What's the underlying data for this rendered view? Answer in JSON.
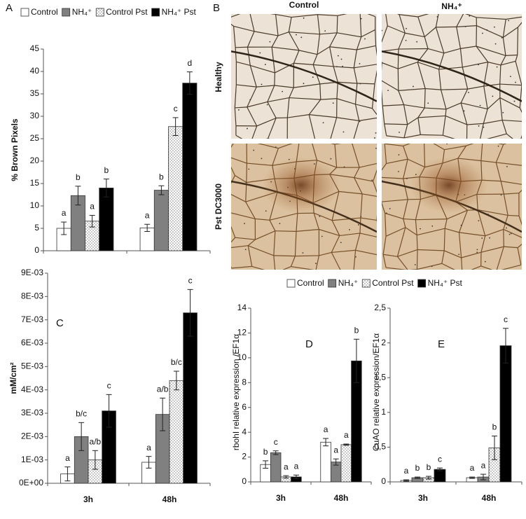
{
  "chart_data": [
    {
      "type": "bar",
      "panel": "A",
      "ylabel": "% Brown Pixels",
      "categories": [
        null,
        null
      ],
      "ylim": [
        0,
        45
      ],
      "yticks": [
        0,
        5,
        10,
        15,
        20,
        25,
        30,
        35,
        40,
        45
      ],
      "series": [
        {
          "name": "Control",
          "color": "#ffffff",
          "values": [
            5,
            5.1
          ],
          "errors": [
            1.4,
            0.8
          ],
          "letters": [
            "a",
            "a"
          ]
        },
        {
          "name": "NH₄⁺",
          "color": "#808080",
          "values": [
            12.3,
            13.5
          ],
          "errors": [
            2.1,
            1.0
          ],
          "letters": [
            "b",
            "b"
          ]
        },
        {
          "name": "Control Pst",
          "color": "#ffffff",
          "pattern": "dots",
          "values": [
            6.6,
            27.7
          ],
          "errors": [
            1.3,
            2.0
          ],
          "letters": [
            "a",
            "c"
          ]
        },
        {
          "name": "NH₄⁺ Pst",
          "color": "#000000",
          "values": [
            14,
            37.4
          ],
          "errors": [
            2.0,
            2.5
          ],
          "letters": [
            "b",
            "d"
          ]
        }
      ]
    },
    {
      "type": "bar",
      "panel": "C",
      "ylabel": "mM/cm²",
      "categories": [
        "3h",
        "48h"
      ],
      "ylim": [
        0,
        0.009
      ],
      "yticks": [
        {
          "value": 0,
          "label": "0E+00"
        },
        {
          "value": 0.001,
          "label": "1E-03"
        },
        {
          "value": 0.002,
          "label": "2E-03"
        },
        {
          "value": 0.003,
          "label": "3E-03"
        },
        {
          "value": 0.004,
          "label": "4E-03"
        },
        {
          "value": 0.005,
          "label": "5E-03"
        },
        {
          "value": 0.006,
          "label": "6E-03"
        },
        {
          "value": 0.007,
          "label": "7E-03"
        },
        {
          "value": 0.008,
          "label": "8E-03"
        },
        {
          "value": 0.009,
          "label": "9E-03"
        }
      ],
      "series": [
        {
          "color": "#ffffff",
          "values": [
            0.0004,
            0.0009
          ],
          "errors": [
            0.0003,
            0.00025
          ],
          "letters": [
            "a",
            "a"
          ]
        },
        {
          "color": "#808080",
          "values": [
            0.002,
            0.00295
          ],
          "errors": [
            0.0006,
            0.0007
          ],
          "letters": [
            "b/c",
            "a/b"
          ]
        },
        {
          "color": "#ffffff",
          "pattern": "dots",
          "values": [
            0.001,
            0.0044
          ],
          "errors": [
            0.0004,
            0.0004
          ],
          "letters": [
            "a/b",
            "b/c"
          ]
        },
        {
          "color": "#000000",
          "values": [
            0.0031,
            0.0073
          ],
          "errors": [
            0.0007,
            0.001
          ],
          "letters": [
            "c",
            "c"
          ]
        }
      ]
    },
    {
      "type": "bar",
      "panel": "D",
      "ylabel": "rbohI  relative expression /EF1α",
      "categories": [
        "3h",
        "48h"
      ],
      "ylim": [
        0,
        14
      ],
      "yticks": [
        0,
        2,
        4,
        6,
        8,
        10,
        12,
        14
      ],
      "series": [
        {
          "name": "Control",
          "color": "#ffffff",
          "values": [
            1.4,
            3.2
          ],
          "errors": [
            0.3,
            0.3
          ],
          "letters": [
            "b",
            "a"
          ]
        },
        {
          "name": "NH₄⁺",
          "color": "#808080",
          "values": [
            2.35,
            1.6
          ],
          "errors": [
            0.15,
            0.25
          ],
          "letters": [
            "c",
            "a"
          ]
        },
        {
          "name": "Control Pst",
          "color": "#ffffff",
          "pattern": "dots",
          "values": [
            0.4,
            3.0
          ],
          "errors": [
            0.1,
            0.05
          ],
          "letters": [
            "a",
            "a"
          ]
        },
        {
          "name": "NH₄⁺ Pst",
          "color": "#000000",
          "values": [
            0.4,
            9.75
          ],
          "errors": [
            0.15,
            1.75
          ],
          "letters": [
            "a",
            "b"
          ]
        }
      ]
    },
    {
      "type": "bar",
      "panel": "E",
      "ylabel": "CuAO relative expression/EF1α",
      "categories": [
        "3h",
        "48h"
      ],
      "ylim": [
        0,
        2.5
      ],
      "yticks": [
        0,
        {
          "value": 0.5,
          "label": "0,5"
        },
        1,
        {
          "value": 1.5,
          "label": "1,5"
        },
        2,
        {
          "value": 2.5,
          "label": "2,5"
        }
      ],
      "series": [
        {
          "color": "#ffffff",
          "values": [
            0.02,
            0.06
          ],
          "errors": [
            0.01,
            0.01
          ],
          "letters": [
            "a",
            "a"
          ]
        },
        {
          "color": "#808080",
          "values": [
            0.06,
            0.07
          ],
          "errors": [
            0.01,
            0.04
          ],
          "letters": [
            "b",
            "a"
          ]
        },
        {
          "color": "#ffffff",
          "pattern": "dots",
          "values": [
            0.06,
            0.49
          ],
          "errors": [
            0.02,
            0.17
          ],
          "letters": [
            "b",
            "b"
          ]
        },
        {
          "color": "#000000",
          "values": [
            0.18,
            1.96
          ],
          "errors": [
            0.02,
            0.25
          ],
          "letters": [
            "c",
            "c"
          ]
        }
      ]
    }
  ],
  "images": {
    "panel": "B",
    "columns": [
      "Control",
      "NH₄⁺"
    ],
    "rows": [
      "Healthy",
      "Pst DC3000"
    ]
  }
}
